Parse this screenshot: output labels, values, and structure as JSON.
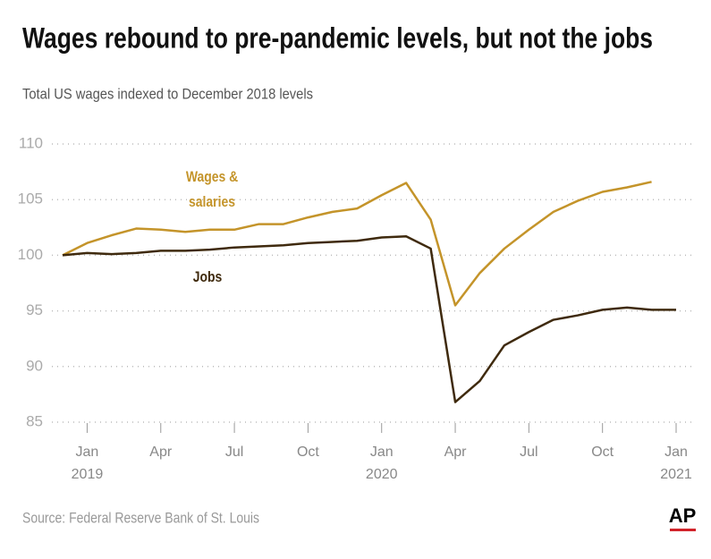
{
  "chart_data": {
    "type": "line",
    "title": "Wages rebound to pre-pandemic levels, but not the jobs",
    "subtitle": "Total US wages indexed to December 2018 levels",
    "source": "Source: Federal Reserve Bank of St. Louis",
    "logo": "AP",
    "categories": [
      null,
      "Jan",
      null,
      null,
      "Apr",
      null,
      null,
      "Jul",
      null,
      null,
      "Oct",
      null,
      null,
      "Jan",
      null,
      null,
      "Apr",
      null,
      null,
      "Jul",
      null,
      null,
      "Oct",
      null,
      null,
      "Jan"
    ],
    "category_years": [
      null,
      "2019",
      null,
      null,
      null,
      null,
      null,
      null,
      null,
      null,
      null,
      null,
      null,
      "2020",
      null,
      null,
      null,
      null,
      null,
      null,
      null,
      null,
      null,
      null,
      null,
      "2021"
    ],
    "series": [
      {
        "name": "Wages & salaries",
        "color": "#c4942a",
        "values": [
          100,
          101.1,
          101.8,
          102.4,
          102.3,
          102.1,
          102.3,
          102.3,
          102.8,
          102.8,
          103.4,
          103.9,
          104.2,
          105.4,
          106.5,
          103.2,
          95.5,
          98.4,
          100.6,
          102.3,
          103.9,
          104.9,
          105.7,
          106.1,
          106.6,
          null
        ]
      },
      {
        "name": "Jobs",
        "color": "#3f2a0e",
        "values": [
          100,
          100.2,
          100.1,
          100.2,
          100.4,
          100.4,
          100.5,
          100.7,
          100.8,
          100.9,
          101.1,
          101.2,
          101.3,
          101.6,
          101.7,
          100.6,
          86.8,
          88.7,
          91.9,
          93.1,
          94.2,
          94.6,
          95.1,
          95.3,
          95.1,
          95.1
        ]
      }
    ],
    "ylim": [
      85,
      110
    ],
    "yticks": [
      85,
      90,
      95,
      100,
      105,
      110
    ],
    "grid": true
  }
}
